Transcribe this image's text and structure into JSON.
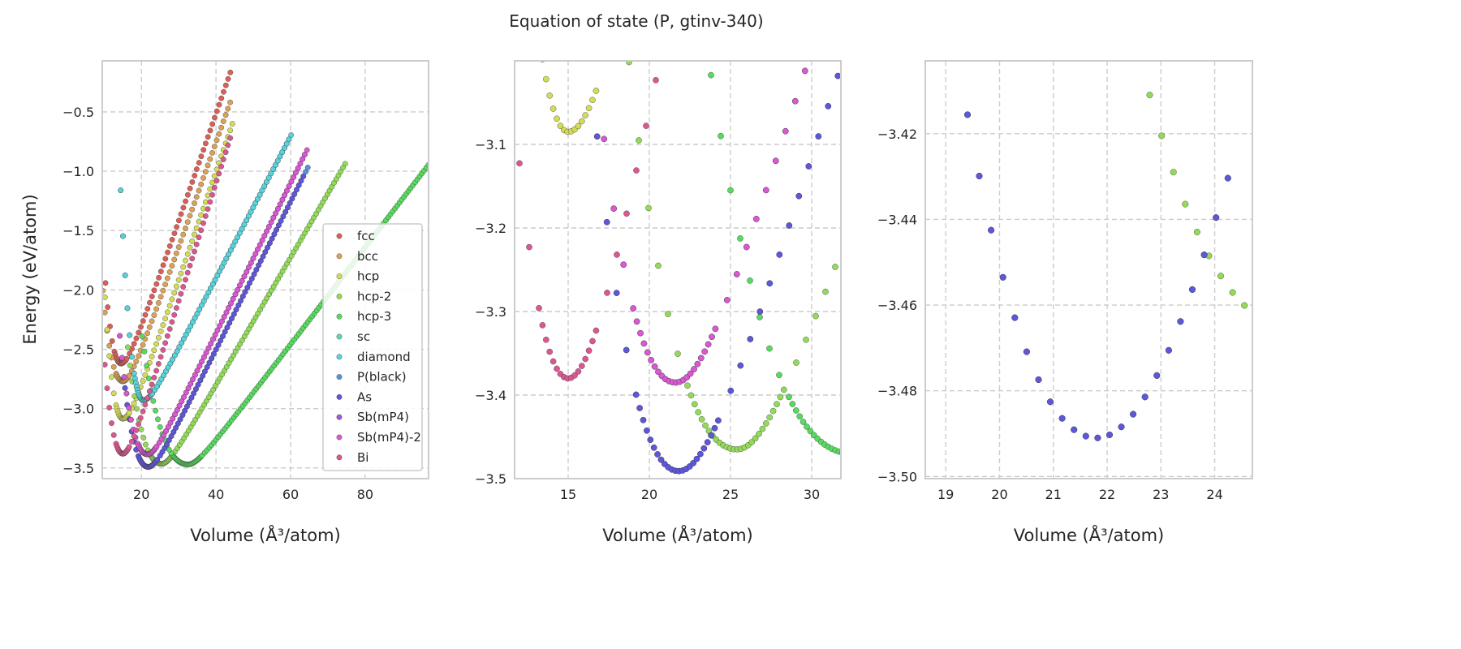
{
  "chart_data": {
    "type": "scatter",
    "title": "Equation of state (P, gtinv-340)",
    "ylabel": "Energy (eV/atom)",
    "legend": {
      "placement": "lower-right of first panel"
    },
    "series": [
      {
        "name": "fcc",
        "color": "#db5f57",
        "V0": 14.5,
        "E0": -2.62,
        "kL": 0.028,
        "s": 0.091,
        "w": 2.5,
        "Vmin": 10,
        "Vmax": 44
      },
      {
        "name": "bcc",
        "color": "#dba157",
        "V0": 15.0,
        "E0": -2.77,
        "kL": 0.017,
        "s": 0.089,
        "w": 2.5,
        "Vmin": 9.5,
        "Vmax": 44
      },
      {
        "name": "hcp",
        "color": "#d3db57",
        "V0": 15.0,
        "E0": -3.085,
        "kL": 0.03,
        "s": 0.092,
        "w": 2.5,
        "Vmin": 10,
        "Vmax": 44.5
      },
      {
        "name": "hcp-2",
        "color": "#91db57",
        "V0": 25.4,
        "E0": -3.465,
        "kL": 0.0063,
        "s": 0.054,
        "w": 2.5,
        "Vmin": 16,
        "Vmax": 75
      },
      {
        "name": "hcp-3",
        "color": "#57db5f",
        "V0": 32.5,
        "E0": -3.47,
        "kL": 0.0032,
        "s": 0.041,
        "w": 3.0,
        "Vmin": 20,
        "Vmax": 97
      },
      {
        "name": "sc",
        "color": "#57dba1",
        "V0": 20.5,
        "E0": -2.93,
        "kL": 0.03,
        "s": 0.06,
        "w": 2.5,
        "Vmin": 14,
        "Vmax": 60
      },
      {
        "name": "diamond",
        "color": "#57d3db",
        "V0": 20.5,
        "E0": -2.93,
        "kL": 0.03,
        "s": 0.06,
        "w": 2.5,
        "Vmin": 14,
        "Vmax": 60.5
      },
      {
        "name": "P(black)",
        "color": "#5791db",
        "V0": 21.8,
        "E0": -3.491,
        "kL": 0.0106,
        "s": 0.0626,
        "w": 2.6,
        "Vmin": 15,
        "Vmax": 65
      },
      {
        "name": "As",
        "color": "#5f57db",
        "V0": 21.8,
        "E0": -3.491,
        "kL": 0.0106,
        "s": 0.0626,
        "w": 2.6,
        "Vmin": 15,
        "Vmax": 64
      },
      {
        "name": "Sb(mP4)",
        "color": "#a157db",
        "V0": 21.6,
        "E0": -3.385,
        "kL": 0.0105,
        "s": 0.0635,
        "w": 2.5,
        "Vmin": 14,
        "Vmax": 64
      },
      {
        "name": "Sb(mP4)-2",
        "color": "#db57d3",
        "V0": 21.6,
        "E0": -3.385,
        "kL": 0.0105,
        "s": 0.0635,
        "w": 2.5,
        "Vmin": 14,
        "Vmax": 64.5
      },
      {
        "name": "Bi",
        "color": "#db5791",
        "V0": 15.0,
        "E0": -3.38,
        "kL": 0.022,
        "s": 0.1,
        "w": 2.3,
        "Vmin": 10,
        "Vmax": 44
      }
    ],
    "panels": [
      {
        "xlabel": "Volume (Å³/atom)",
        "xlim": [
          9.5,
          97
        ],
        "ylim": [
          -3.59,
          -0.07
        ],
        "xticks": [
          20,
          40,
          60,
          80
        ],
        "xtick_labels": [
          "20",
          "40",
          "60",
          "80"
        ],
        "yticks": [
          -0.5,
          -1.0,
          -1.5,
          -2.0,
          -2.5,
          -3.0,
          -3.5
        ],
        "ytick_labels": [
          "−0.5",
          "−1.0",
          "−1.5",
          "−2.0",
          "−2.5",
          "−3.0",
          "−3.5"
        ],
        "grid": true,
        "legend": true
      },
      {
        "xlabel": "Volume (Å³/atom)",
        "xlim": [
          11.7,
          31.8
        ],
        "ylim": [
          -3.5,
          -3.0
        ],
        "xticks": [
          15,
          20,
          25,
          30
        ],
        "xtick_labels": [
          "15",
          "20",
          "25",
          "30"
        ],
        "yticks": [
          -3.1,
          -3.2,
          -3.3,
          -3.4,
          -3.5
        ],
        "ytick_labels": [
          "−3.1",
          "−3.2",
          "−3.3",
          "−3.4",
          "−3.5"
        ],
        "grid": true,
        "legend": false
      },
      {
        "xlabel": "Volume (Å³/atom)",
        "xlim": [
          18.62,
          24.7
        ],
        "ylim": [
          -3.5005,
          -3.403
        ],
        "xticks": [
          19,
          20,
          21,
          22,
          23,
          24
        ],
        "xtick_labels": [
          "19",
          "20",
          "21",
          "22",
          "23",
          "24"
        ],
        "yticks": [
          -3.42,
          -3.44,
          -3.46,
          -3.48,
          -3.5
        ],
        "ytick_labels": [
          "−3.42",
          "−3.44",
          "−3.46",
          "−3.48",
          "−3.50"
        ],
        "grid": true,
        "legend": false
      }
    ]
  }
}
